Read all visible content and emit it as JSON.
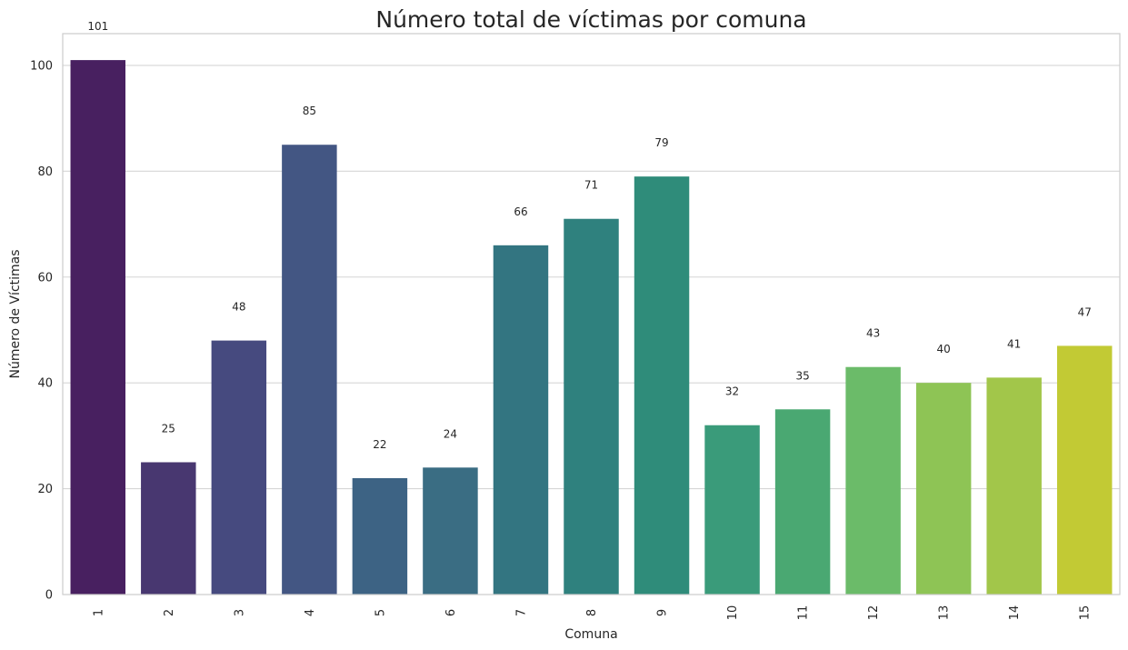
{
  "chart_data": {
    "type": "bar",
    "title": "Número total de víctimas por comuna",
    "xlabel": "Comuna",
    "ylabel": "Número de Víctimas",
    "categories": [
      "1",
      "2",
      "3",
      "4",
      "5",
      "6",
      "7",
      "8",
      "9",
      "10",
      "11",
      "12",
      "13",
      "14",
      "15"
    ],
    "values": [
      101,
      25,
      48,
      85,
      22,
      24,
      66,
      71,
      79,
      32,
      35,
      43,
      40,
      41,
      47
    ],
    "data_labels": [
      "101",
      "25",
      "48",
      "85",
      "22",
      "24",
      "66",
      "71",
      "79",
      "32",
      "35",
      "43",
      "40",
      "41",
      "47"
    ],
    "colors": [
      "#482060",
      "#483770",
      "#464a7f",
      "#435683",
      "#3d6384",
      "#3a6d83",
      "#337581",
      "#2f817e",
      "#2f8c7a",
      "#3a9b7a",
      "#4aa872",
      "#6bbb69",
      "#8ec455",
      "#a2c64a",
      "#c2ca34"
    ],
    "ylim": [
      0,
      106
    ],
    "yticks": [
      "0",
      "20",
      "40",
      "60",
      "80",
      "100"
    ],
    "grid": true,
    "xtick_rotation": "vertical"
  }
}
